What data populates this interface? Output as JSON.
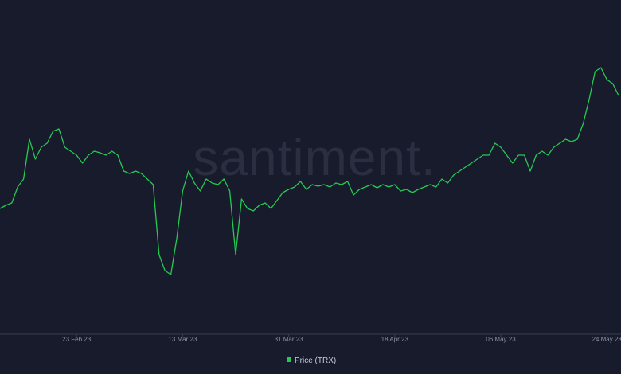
{
  "chart_data": {
    "type": "line",
    "watermark": "santiment.",
    "x": [
      "10 Feb 23",
      "11 Feb 23",
      "12 Feb 23",
      "13 Feb 23",
      "14 Feb 23",
      "15 Feb 23",
      "16 Feb 23",
      "17 Feb 23",
      "18 Feb 23",
      "19 Feb 23",
      "20 Feb 23",
      "21 Feb 23",
      "22 Feb 23",
      "23 Feb 23",
      "24 Feb 23",
      "25 Feb 23",
      "26 Feb 23",
      "27 Feb 23",
      "28 Feb 23",
      "01 Mar 23",
      "02 Mar 23",
      "03 Mar 23",
      "04 Mar 23",
      "05 Mar 23",
      "06 Mar 23",
      "07 Mar 23",
      "08 Mar 23",
      "09 Mar 23",
      "10 Mar 23",
      "11 Mar 23",
      "12 Mar 23",
      "13 Mar 23",
      "14 Mar 23",
      "15 Mar 23",
      "16 Mar 23",
      "17 Mar 23",
      "18 Mar 23",
      "19 Mar 23",
      "20 Mar 23",
      "21 Mar 23",
      "22 Mar 23",
      "23 Mar 23",
      "24 Mar 23",
      "25 Mar 23",
      "26 Mar 23",
      "27 Mar 23",
      "28 Mar 23",
      "29 Mar 23",
      "30 Mar 23",
      "31 Mar 23",
      "01 Apr 23",
      "02 Apr 23",
      "03 Apr 23",
      "04 Apr 23",
      "05 Apr 23",
      "06 Apr 23",
      "07 Apr 23",
      "08 Apr 23",
      "09 Apr 23",
      "10 Apr 23",
      "11 Apr 23",
      "12 Apr 23",
      "13 Apr 23",
      "14 Apr 23",
      "15 Apr 23",
      "16 Apr 23",
      "17 Apr 23",
      "18 Apr 23",
      "19 Apr 23",
      "20 Apr 23",
      "21 Apr 23",
      "22 Apr 23",
      "23 Apr 23",
      "24 Apr 23",
      "25 Apr 23",
      "26 Apr 23",
      "27 Apr 23",
      "28 Apr 23",
      "29 Apr 23",
      "30 Apr 23",
      "01 May 23",
      "02 May 23",
      "03 May 23",
      "04 May 23",
      "05 May 23",
      "06 May 23",
      "07 May 23",
      "08 May 23",
      "09 May 23",
      "10 May 23",
      "11 May 23",
      "12 May 23",
      "13 May 23",
      "14 May 23",
      "15 May 23",
      "16 May 23",
      "17 May 23",
      "18 May 23",
      "19 May 23",
      "20 May 23",
      "21 May 23",
      "22 May 23",
      "23 May 23",
      "24 May 23",
      "25 May 23",
      "26 May 23"
    ],
    "series": [
      {
        "name": "Price (TRX)",
        "color": "#26c953",
        "values": [
          0.0593,
          0.0597,
          0.06,
          0.062,
          0.063,
          0.068,
          0.0655,
          0.067,
          0.0675,
          0.069,
          0.0693,
          0.067,
          0.0665,
          0.066,
          0.065,
          0.066,
          0.0665,
          0.0663,
          0.066,
          0.0665,
          0.066,
          0.064,
          0.0637,
          0.064,
          0.0637,
          0.063,
          0.0623,
          0.0535,
          0.0515,
          0.051,
          0.0555,
          0.0615,
          0.064,
          0.0625,
          0.0615,
          0.063,
          0.0625,
          0.0623,
          0.063,
          0.0615,
          0.0535,
          0.0605,
          0.0593,
          0.059,
          0.0597,
          0.06,
          0.0593,
          0.0603,
          0.0613,
          0.0617,
          0.062,
          0.0627,
          0.0617,
          0.0623,
          0.0621,
          0.0623,
          0.062,
          0.0625,
          0.0623,
          0.0627,
          0.061,
          0.0617,
          0.062,
          0.0623,
          0.0619,
          0.0623,
          0.062,
          0.0623,
          0.0615,
          0.0617,
          0.0613,
          0.0617,
          0.062,
          0.0623,
          0.062,
          0.063,
          0.0625,
          0.0635,
          0.064,
          0.0645,
          0.065,
          0.0655,
          0.066,
          0.066,
          0.0675,
          0.067,
          0.066,
          0.065,
          0.066,
          0.066,
          0.064,
          0.066,
          0.0665,
          0.066,
          0.067,
          0.0675,
          0.068,
          0.0677,
          0.068,
          0.07,
          0.073,
          0.0765,
          0.077,
          0.0755,
          0.075,
          0.0735
        ]
      }
    ],
    "ylim": [
      0.0435,
      0.0855
    ],
    "xticks": [
      "23 Feb 23",
      "13 Mar 23",
      "31 Mar 23",
      "18 Apr 23",
      "06 May 23",
      "24 May 23"
    ]
  }
}
